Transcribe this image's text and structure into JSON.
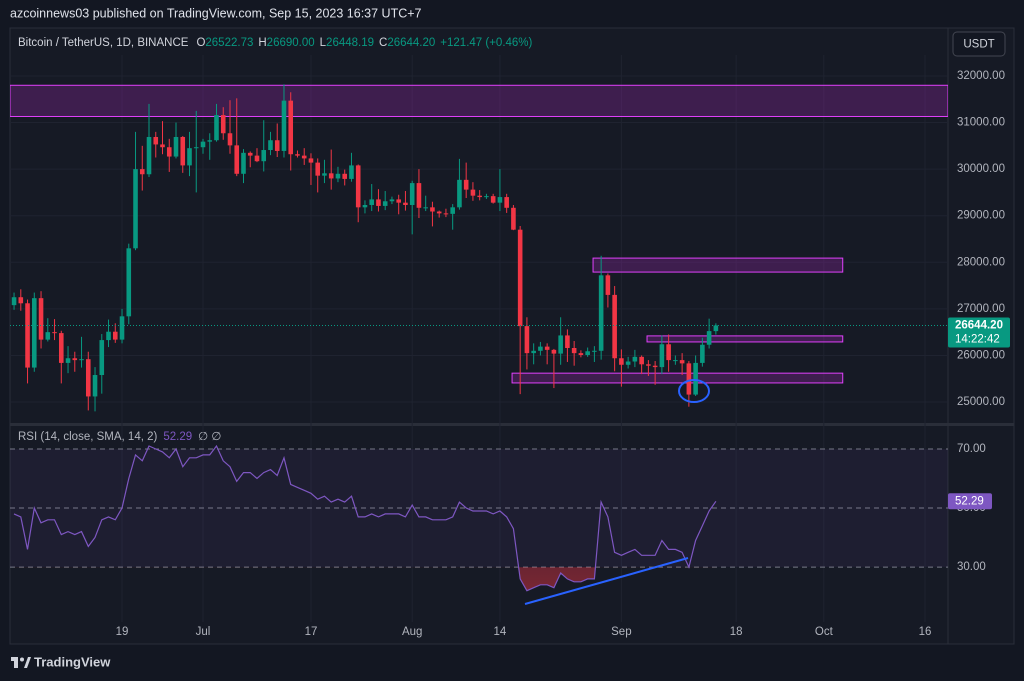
{
  "header": {
    "publisher": "azcoinnews03 published on TradingView.com, Sep 15, 2023 16:37 UTC+7"
  },
  "footer": {
    "brand": "TradingView"
  },
  "chart_data": {
    "type": "candlestick",
    "symbol": "Bitcoin / TetherUS, 1D, BINANCE",
    "ohlc_legend": [
      {
        "label": "O",
        "value": "26522.73"
      },
      {
        "label": "H",
        "value": "26690.00"
      },
      {
        "label": "L",
        "value": "26448.19"
      },
      {
        "label": "C",
        "value": "26644.20"
      }
    ],
    "change": "+121.47 (+0.46%)",
    "currency": "USDT",
    "countdown": "14:22:42",
    "last_price": {
      "value": 26644.2,
      "label": "26644.20"
    },
    "up_color": "#089981",
    "down_color": "#f23645",
    "xlim": [
      -0.6,
      138.4
    ],
    "xticks": [
      {
        "value": 16,
        "label": "19"
      },
      {
        "value": 28,
        "label": "Jul"
      },
      {
        "value": 44,
        "label": "17"
      },
      {
        "value": 59,
        "label": "Aug"
      },
      {
        "value": 72,
        "label": "14"
      },
      {
        "value": 90,
        "label": "Sep"
      },
      {
        "value": 107,
        "label": "18"
      },
      {
        "value": 120,
        "label": "Oct"
      },
      {
        "value": 135,
        "label": "16"
      }
    ],
    "ylim": [
      24550,
      32450
    ],
    "yticks": [
      {
        "value": 25000,
        "label": "25000.00"
      },
      {
        "value": 26000,
        "label": "26000.00"
      },
      {
        "value": 27000,
        "label": "27000.00"
      },
      {
        "value": 28000,
        "label": "28000.00"
      },
      {
        "value": 29000,
        "label": "29000.00"
      },
      {
        "value": 30000,
        "label": "30000.00"
      },
      {
        "value": 31000,
        "label": "31000.00"
      },
      {
        "value": 32000,
        "label": "32000.00"
      }
    ],
    "ohlc": [
      [
        27080,
        27350,
        26980,
        27250
      ],
      [
        27250,
        27420,
        26960,
        27120
      ],
      [
        27120,
        27200,
        25400,
        25740
      ],
      [
        25740,
        27350,
        25650,
        27230
      ],
      [
        27230,
        27380,
        26150,
        26340
      ],
      [
        26340,
        26800,
        26300,
        26500
      ],
      [
        26500,
        26780,
        26330,
        26480
      ],
      [
        26480,
        26530,
        25400,
        25840
      ],
      [
        25840,
        26200,
        25620,
        25940
      ],
      [
        25940,
        26080,
        25650,
        25900
      ],
      [
        25900,
        26400,
        25740,
        25920
      ],
      [
        25920,
        26080,
        24820,
        25120
      ],
      [
        25120,
        25750,
        24800,
        25580
      ],
      [
        25580,
        26460,
        25180,
        26330
      ],
      [
        26330,
        26770,
        26180,
        26510
      ],
      [
        26510,
        26690,
        26270,
        26340
      ],
      [
        26340,
        27000,
        26260,
        26840
      ],
      [
        26840,
        28400,
        26670,
        28300
      ],
      [
        28300,
        30800,
        28260,
        30000
      ],
      [
        30000,
        30500,
        29540,
        29890
      ],
      [
        29890,
        31400,
        29830,
        30690
      ],
      [
        30690,
        30800,
        30250,
        30530
      ],
      [
        30530,
        31030,
        30320,
        30470
      ],
      [
        30470,
        30650,
        29940,
        30270
      ],
      [
        30270,
        31000,
        30230,
        30690
      ],
      [
        30690,
        30710,
        29920,
        30080
      ],
      [
        30080,
        30800,
        29850,
        30450
      ],
      [
        30450,
        31250,
        29500,
        30470
      ],
      [
        30470,
        30650,
        30330,
        30590
      ],
      [
        30590,
        30770,
        30200,
        30620
      ],
      [
        30620,
        31400,
        30590,
        31160
      ],
      [
        31160,
        31330,
        30630,
        30770
      ],
      [
        30770,
        31480,
        30330,
        30510
      ],
      [
        30510,
        31520,
        29850,
        29900
      ],
      [
        29900,
        30430,
        29700,
        30350
      ],
      [
        30350,
        30380,
        30040,
        30290
      ],
      [
        30290,
        30450,
        30150,
        30170
      ],
      [
        30170,
        31050,
        29950,
        30410
      ],
      [
        30410,
        30800,
        30300,
        30620
      ],
      [
        30620,
        30980,
        30260,
        30390
      ],
      [
        30390,
        31820,
        30250,
        31470
      ],
      [
        31470,
        31650,
        29970,
        30320
      ],
      [
        30320,
        30400,
        30250,
        30290
      ],
      [
        30290,
        30450,
        30090,
        30230
      ],
      [
        30230,
        30340,
        29660,
        30140
      ],
      [
        30140,
        30230,
        29500,
        29860
      ],
      [
        29860,
        30200,
        29700,
        29910
      ],
      [
        29910,
        30420,
        29560,
        29800
      ],
      [
        29800,
        30050,
        29720,
        29900
      ],
      [
        29900,
        29990,
        29650,
        29790
      ],
      [
        29790,
        30350,
        29730,
        30080
      ],
      [
        30080,
        30100,
        28860,
        29180
      ],
      [
        29180,
        29330,
        29050,
        29230
      ],
      [
        29230,
        29680,
        29100,
        29350
      ],
      [
        29350,
        29570,
        29090,
        29210
      ],
      [
        29210,
        29530,
        29120,
        29310
      ],
      [
        29310,
        29410,
        29250,
        29350
      ],
      [
        29350,
        29450,
        29030,
        29280
      ],
      [
        29280,
        29530,
        29110,
        29230
      ],
      [
        29230,
        29750,
        28600,
        29700
      ],
      [
        29700,
        30000,
        28950,
        29170
      ],
      [
        29170,
        29430,
        29100,
        29180
      ],
      [
        29180,
        29300,
        28770,
        29090
      ],
      [
        29090,
        29110,
        28960,
        29050
      ],
      [
        29050,
        29150,
        28970,
        29040
      ],
      [
        29040,
        29250,
        28700,
        29180
      ],
      [
        29180,
        30220,
        29130,
        29770
      ],
      [
        29770,
        30140,
        29380,
        29560
      ],
      [
        29560,
        29720,
        29320,
        29430
      ],
      [
        29430,
        29550,
        29330,
        29400
      ],
      [
        29400,
        29470,
        29360,
        29420
      ],
      [
        29420,
        29470,
        29260,
        29280
      ],
      [
        29280,
        30000,
        29100,
        29400
      ],
      [
        29400,
        29470,
        29060,
        29170
      ],
      [
        29170,
        29230,
        28690,
        28700
      ],
      [
        28700,
        28780,
        25170,
        26630
      ],
      [
        26630,
        26820,
        25700,
        26050
      ],
      [
        26050,
        26260,
        25810,
        26100
      ],
      [
        26100,
        26290,
        26000,
        26190
      ],
      [
        26190,
        26260,
        25810,
        26120
      ],
      [
        26120,
        26140,
        25300,
        26040
      ],
      [
        26040,
        26820,
        25800,
        26430
      ],
      [
        26430,
        26560,
        25860,
        26160
      ],
      [
        26160,
        26310,
        25780,
        26050
      ],
      [
        26050,
        26110,
        25960,
        26010
      ],
      [
        26010,
        26170,
        25970,
        26090
      ],
      [
        26090,
        26200,
        25860,
        26100
      ],
      [
        26100,
        28140,
        25910,
        27720
      ],
      [
        27720,
        27760,
        27030,
        27300
      ],
      [
        27300,
        27490,
        25660,
        25940
      ],
      [
        25940,
        26130,
        25330,
        25800
      ],
      [
        25800,
        25970,
        25720,
        25870
      ],
      [
        25870,
        26120,
        25750,
        25970
      ],
      [
        25970,
        26000,
        25600,
        25810
      ],
      [
        25810,
        25900,
        25560,
        25780
      ],
      [
        25780,
        25880,
        25370,
        25750
      ],
      [
        25750,
        26430,
        25600,
        26240
      ],
      [
        26240,
        26450,
        25650,
        25900
      ],
      [
        25900,
        26000,
        25800,
        25900
      ],
      [
        25900,
        26050,
        25580,
        25830
      ],
      [
        25830,
        25880,
        24900,
        25160
      ],
      [
        25160,
        26000,
        25130,
        25840
      ],
      [
        25840,
        26380,
        25760,
        26230
      ],
      [
        26230,
        26790,
        26150,
        26522.73
      ],
      [
        26522.73,
        26690.0,
        26448.19,
        26644.2
      ]
    ],
    "zones": [
      {
        "low": 31130,
        "high": 31800,
        "from": -0.6,
        "to": 138.4
      },
      {
        "low": 27790,
        "high": 28090,
        "from": 85.8,
        "to": 122.8
      },
      {
        "low": 26290,
        "high": 26420,
        "from": 93.8,
        "to": 122.8
      },
      {
        "low": 25410,
        "high": 25620,
        "from": 73.8,
        "to": 122.8
      }
    ],
    "zone_color": "#9c27b0",
    "zone_border": "#e040fb",
    "rsi": {
      "title": "RSI (14, close, SMA, 14, 2)",
      "extra": "∅ ∅",
      "color": "#7e57c2",
      "ylim": [
        11.4,
        77.1
      ],
      "yticks": [
        {
          "value": 30,
          "label": "30.00"
        },
        {
          "value": 50,
          "label": "50.00"
        },
        {
          "value": 70,
          "label": "70.00"
        }
      ],
      "values": [
        48,
        47,
        36,
        50,
        45,
        46,
        46,
        41,
        42,
        41,
        42,
        37,
        40,
        46,
        47,
        46,
        50,
        60,
        68,
        66,
        71,
        70,
        69,
        67,
        70,
        64,
        67,
        67,
        68,
        68,
        71,
        66,
        64,
        59,
        62,
        62,
        60,
        62,
        63,
        61,
        67,
        58,
        57,
        56,
        55,
        53,
        54,
        52,
        53,
        52,
        54,
        47,
        47,
        48,
        47,
        48,
        48,
        48,
        47,
        51,
        47,
        47,
        46,
        46,
        46,
        47,
        52,
        50,
        49,
        49,
        49,
        48,
        49,
        47,
        43,
        26,
        22,
        23,
        24,
        24,
        23,
        28,
        26,
        25,
        25,
        26,
        26,
        52,
        47,
        35,
        34,
        35,
        36,
        34,
        34,
        34,
        39,
        36,
        36,
        35,
        30,
        39,
        44,
        49,
        52.29
      ]
    }
  }
}
